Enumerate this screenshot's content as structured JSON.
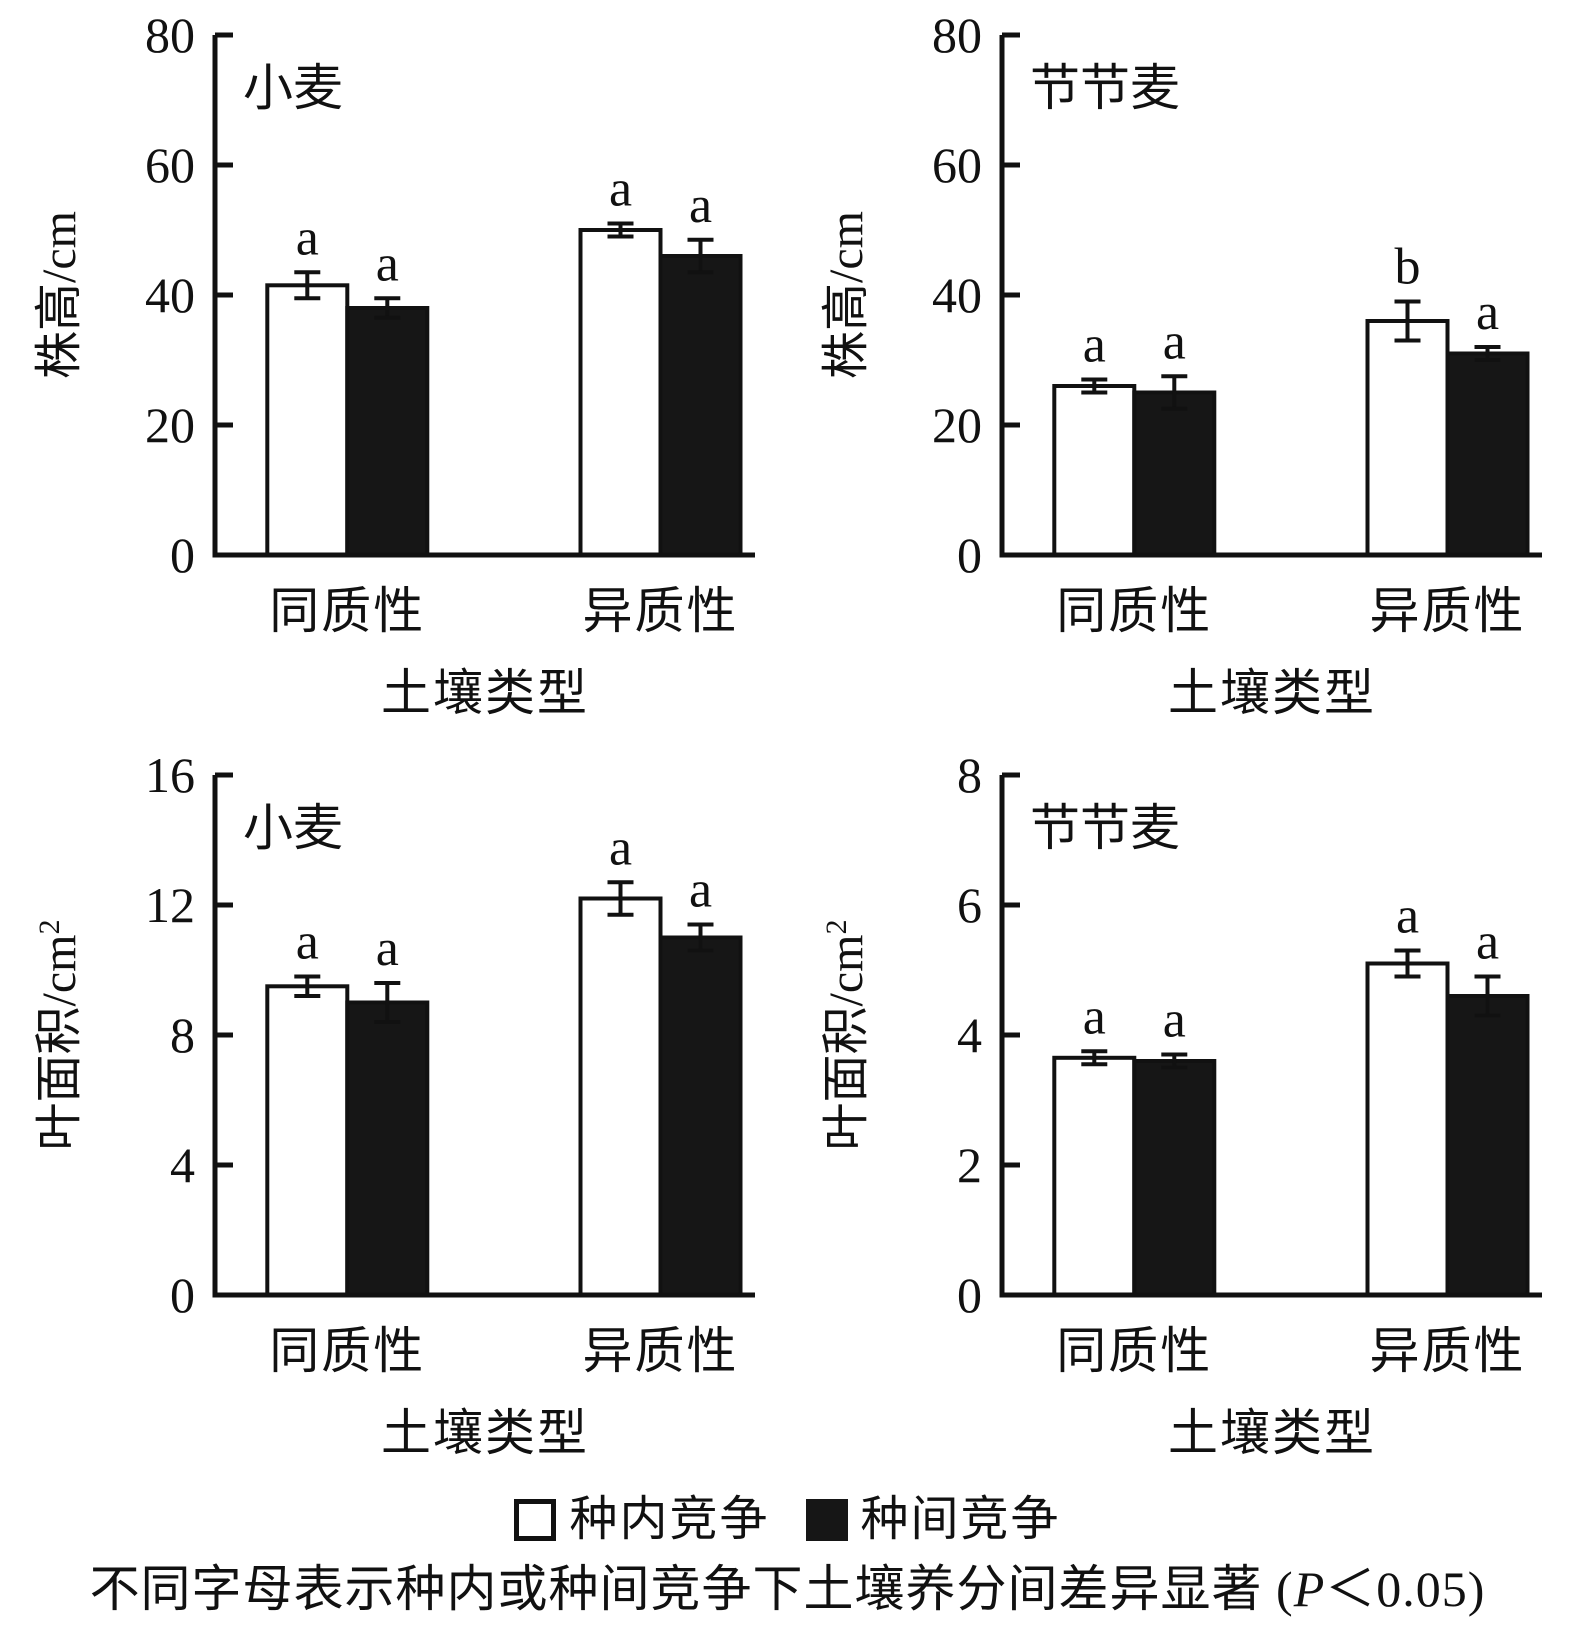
{
  "colors": {
    "ink": "#111111",
    "bar_white": "#ffffff",
    "bar_black": "#161616"
  },
  "legend": {
    "items": [
      {
        "key": "intraspecific",
        "label": "种内竞争",
        "swatch": "white"
      },
      {
        "key": "interspecific",
        "label": "种间竞争",
        "swatch": "black"
      }
    ]
  },
  "caption": {
    "prefix": "不同字母表示种内或种间竞争下土壤养分间差异显著 (",
    "p": "P",
    "suffix": "＜0.05)"
  },
  "chart_data": [
    {
      "type": "bar",
      "panel_label": "小麦",
      "ylabel": "株高/cm",
      "ylabel_sup": "",
      "xlabel": "土壤类型",
      "categories": [
        "同质性",
        "异质性"
      ],
      "ylim": [
        0,
        80
      ],
      "ytick_step": 20,
      "grid": false,
      "legend_position": "shared-bottom",
      "series": [
        {
          "key": "intraspecific",
          "name": "种内竞争",
          "fill": "white",
          "values": [
            41.5,
            50.0
          ],
          "errors": [
            2.0,
            1.0
          ],
          "sig_letters": [
            "a",
            "a"
          ]
        },
        {
          "key": "interspecific",
          "name": "种间竞争",
          "fill": "black",
          "values": [
            38.0,
            46.0
          ],
          "errors": [
            1.5,
            2.5
          ],
          "sig_letters": [
            "a",
            "a"
          ]
        }
      ]
    },
    {
      "type": "bar",
      "panel_label": "节节麦",
      "ylabel": "株高/cm",
      "ylabel_sup": "",
      "xlabel": "土壤类型",
      "categories": [
        "同质性",
        "异质性"
      ],
      "ylim": [
        0,
        80
      ],
      "ytick_step": 20,
      "grid": false,
      "legend_position": "shared-bottom",
      "series": [
        {
          "key": "intraspecific",
          "name": "种内竞争",
          "fill": "white",
          "values": [
            26.0,
            36.0
          ],
          "errors": [
            1.0,
            3.0
          ],
          "sig_letters": [
            "a",
            "b"
          ]
        },
        {
          "key": "interspecific",
          "name": "种间竞争",
          "fill": "black",
          "values": [
            25.0,
            31.0
          ],
          "errors": [
            2.5,
            1.0
          ],
          "sig_letters": [
            "a",
            "a"
          ]
        }
      ]
    },
    {
      "type": "bar",
      "panel_label": "小麦",
      "ylabel": "叶面积/cm",
      "ylabel_sup": "2",
      "xlabel": "土壤类型",
      "categories": [
        "同质性",
        "异质性"
      ],
      "ylim": [
        0,
        16
      ],
      "ytick_step": 4,
      "grid": false,
      "legend_position": "shared-bottom",
      "series": [
        {
          "key": "intraspecific",
          "name": "种内竞争",
          "fill": "white",
          "values": [
            9.5,
            12.2
          ],
          "errors": [
            0.3,
            0.5
          ],
          "sig_letters": [
            "a",
            "a"
          ]
        },
        {
          "key": "interspecific",
          "name": "种间竞争",
          "fill": "black",
          "values": [
            9.0,
            11.0
          ],
          "errors": [
            0.6,
            0.4
          ],
          "sig_letters": [
            "a",
            "a"
          ]
        }
      ]
    },
    {
      "type": "bar",
      "panel_label": "节节麦",
      "ylabel": "叶面积/cm",
      "ylabel_sup": "2",
      "xlabel": "土壤类型",
      "categories": [
        "同质性",
        "异质性"
      ],
      "ylim": [
        0,
        8
      ],
      "ytick_step": 2,
      "grid": false,
      "legend_position": "shared-bottom",
      "series": [
        {
          "key": "intraspecific",
          "name": "种内竞争",
          "fill": "white",
          "values": [
            3.65,
            5.1
          ],
          "errors": [
            0.1,
            0.2
          ],
          "sig_letters": [
            "a",
            "a"
          ]
        },
        {
          "key": "interspecific",
          "name": "种间竞争",
          "fill": "black",
          "values": [
            3.6,
            4.6
          ],
          "errors": [
            0.1,
            0.3
          ],
          "sig_letters": [
            "a",
            "a"
          ]
        }
      ]
    }
  ]
}
